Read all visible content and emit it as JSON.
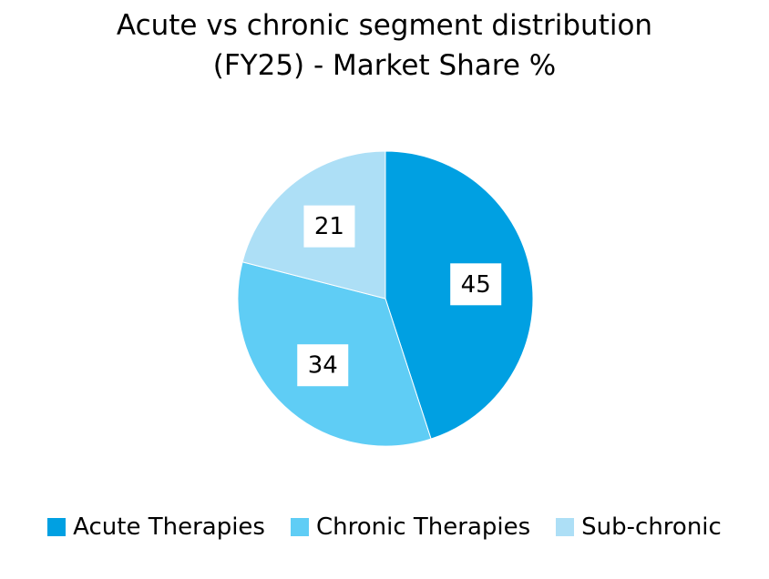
{
  "chart_data": {
    "type": "pie",
    "title": "Acute vs chronic segment distribution (FY25) - Market Share %",
    "categories": [
      "Acute Therapies",
      "Chronic Therapies",
      "Sub-chronic"
    ],
    "values": [
      45,
      34,
      21
    ],
    "colors": [
      "#00a0e2",
      "#5fcdf5",
      "#addff6"
    ],
    "legend": "bottom"
  }
}
